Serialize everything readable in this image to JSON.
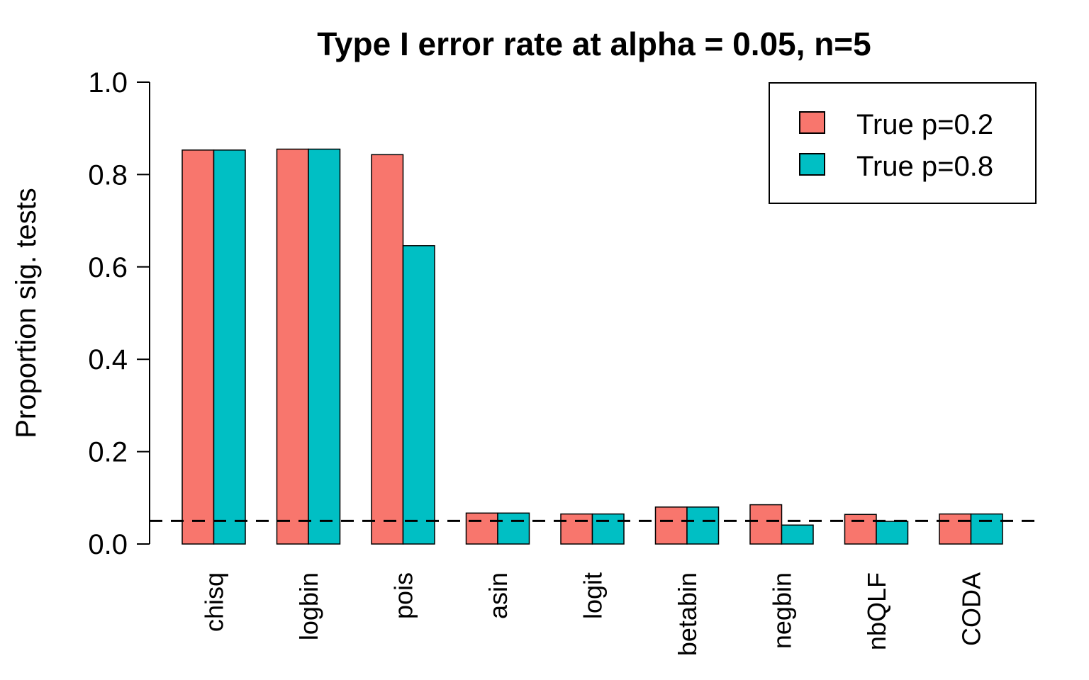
{
  "chart_data": {
    "type": "bar",
    "title": "Type I error rate at alpha = 0.05, n=5",
    "xlabel": "",
    "ylabel": "Proportion sig. tests",
    "ylim": [
      0,
      1
    ],
    "yticks": [
      "0.0",
      "0.2",
      "0.4",
      "0.6",
      "0.8",
      "1.0"
    ],
    "categories": [
      "chisq",
      "logbin",
      "pois",
      "asin",
      "logit",
      "betabin",
      "negbin",
      "nbQLF",
      "CODA"
    ],
    "series": [
      {
        "name": "True p=0.2",
        "color": "#F8766D",
        "values": [
          0.853,
          0.855,
          0.843,
          0.067,
          0.065,
          0.08,
          0.085,
          0.064,
          0.065
        ]
      },
      {
        "name": "True p=0.8",
        "color": "#00BFC4",
        "values": [
          0.853,
          0.855,
          0.646,
          0.067,
          0.065,
          0.08,
          0.041,
          0.049,
          0.065
        ]
      }
    ],
    "reference_line": {
      "y": 0.05,
      "style": "dashed",
      "color": "#000000"
    },
    "legend_position": "top-right",
    "grid": false
  }
}
